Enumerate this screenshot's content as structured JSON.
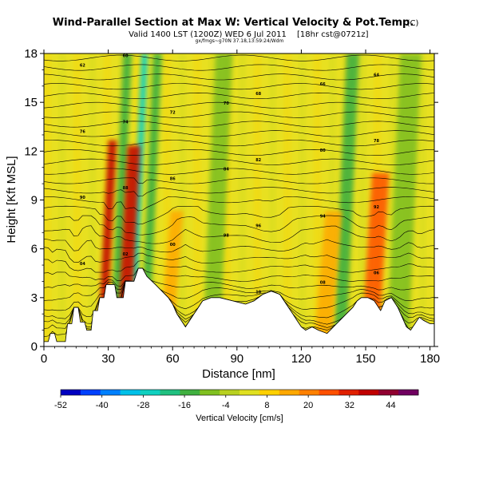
{
  "header": {
    "title": "Wind-Parallel Section at Max W: Vertical Velocity & Pot.Temp.",
    "copyright": "(C)",
    "valid_line": "Valid 1400 LST (1200Z) WED 6 Jul 2011",
    "valid_suffix": "[18hr cst@0721z]",
    "source_line": "gx/fmgs~g70N 37.18,13:59:24/Wdm"
  },
  "chart_data": {
    "type": "heatmap",
    "title": "Wind-Parallel Section at Max W: Vertical Velocity & Pot.Temp.",
    "xlabel": "Distance [nm]",
    "ylabel": "Height [Kft MSL]",
    "xlim": [
      0,
      182
    ],
    "ylim": [
      0,
      18
    ],
    "x_ticks": [
      0,
      30,
      60,
      90,
      120,
      150,
      180
    ],
    "y_ticks": [
      0,
      3,
      6,
      9,
      12,
      15,
      18
    ],
    "x_tick_labels": [
      "0",
      "30",
      "60",
      "90",
      "120",
      "150",
      "180"
    ],
    "y_tick_labels": [
      "0",
      "3",
      "6",
      "9",
      "12",
      "15",
      "18"
    ],
    "colorbar": {
      "label": "Vertical Velocity [cm/s]",
      "range": [
        -52,
        52
      ],
      "ticks": [
        -52,
        -40,
        -28,
        -16,
        -4,
        8,
        20,
        32,
        44
      ],
      "tick_labels": [
        "-52",
        "-40",
        "-28",
        "-16",
        "-4",
        "8",
        "20",
        "32",
        "44"
      ],
      "colors": [
        "#0000c0",
        "#0040ff",
        "#0080ff",
        "#00c0e8",
        "#10d0c0",
        "#20c080",
        "#40b040",
        "#80c020",
        "#b8d020",
        "#e0e020",
        "#ffd000",
        "#ffa800",
        "#ff8000",
        "#ff5000",
        "#e02000",
        "#c00000",
        "#900030",
        "#700060"
      ]
    },
    "terrain_nm_kft": [
      [
        0,
        0.3
      ],
      [
        2,
        0.3
      ],
      [
        3,
        0.8
      ],
      [
        5,
        0.8
      ],
      [
        6,
        0.3
      ],
      [
        10,
        0.3
      ],
      [
        11,
        1.4
      ],
      [
        13,
        1.4
      ],
      [
        14,
        2.4
      ],
      [
        16,
        2.4
      ],
      [
        17,
        1.5
      ],
      [
        19,
        1.5
      ],
      [
        20,
        1.0
      ],
      [
        22,
        1.0
      ],
      [
        23,
        2.2
      ],
      [
        25,
        2.2
      ],
      [
        26,
        3.0
      ],
      [
        28,
        3.0
      ],
      [
        29,
        3.8
      ],
      [
        33,
        3.8
      ],
      [
        34,
        3.0
      ],
      [
        37,
        3.0
      ],
      [
        38,
        4.0
      ],
      [
        42,
        4.0
      ],
      [
        44,
        4.8
      ],
      [
        46,
        4.8
      ],
      [
        48,
        4.3
      ],
      [
        52,
        3.8
      ],
      [
        55,
        3.4
      ],
      [
        58,
        3.0
      ],
      [
        60,
        2.6
      ],
      [
        62,
        2.0
      ],
      [
        64,
        1.6
      ],
      [
        66,
        1.2
      ],
      [
        68,
        1.6
      ],
      [
        70,
        2.0
      ],
      [
        72,
        2.4
      ],
      [
        74,
        2.8
      ],
      [
        78,
        3.0
      ],
      [
        82,
        3.0
      ],
      [
        88,
        2.8
      ],
      [
        94,
        2.6
      ],
      [
        98,
        2.8
      ],
      [
        102,
        3.2
      ],
      [
        106,
        3.4
      ],
      [
        110,
        3.2
      ],
      [
        113,
        2.6
      ],
      [
        116,
        2.0
      ],
      [
        118,
        1.6
      ],
      [
        120,
        1.2
      ],
      [
        122,
        1.0
      ],
      [
        125,
        1.2
      ],
      [
        128,
        1.0
      ],
      [
        132,
        0.8
      ],
      [
        135,
        1.2
      ],
      [
        138,
        1.6
      ],
      [
        141,
        2.0
      ],
      [
        144,
        2.4
      ],
      [
        146,
        2.8
      ],
      [
        148,
        3.0
      ],
      [
        151,
        3.0
      ],
      [
        154,
        2.8
      ],
      [
        157,
        2.2
      ],
      [
        159,
        2.8
      ],
      [
        162,
        3.0
      ],
      [
        165,
        2.4
      ],
      [
        167,
        1.8
      ],
      [
        169,
        1.2
      ],
      [
        171,
        1.0
      ],
      [
        173,
        1.4
      ],
      [
        175,
        1.8
      ],
      [
        177,
        1.6
      ],
      [
        180,
        1.4
      ],
      [
        182,
        1.4
      ]
    ],
    "updrafts": [
      {
        "x": 27,
        "width": 4,
        "w": 40
      },
      {
        "x": 37,
        "width": 6,
        "w": 38
      },
      {
        "x": 57,
        "width": 6,
        "w": 14
      },
      {
        "x": 130,
        "width": 8,
        "w": 14
      },
      {
        "x": 152,
        "width": 8,
        "w": 28
      }
    ],
    "downdrafts": [
      {
        "x": 33,
        "width": 4,
        "w": -16
      },
      {
        "x": 41,
        "width": 3,
        "w": -28
      },
      {
        "x": 47,
        "width": 4,
        "w": -16
      },
      {
        "x": 78,
        "width": 8,
        "w": -8
      },
      {
        "x": 138,
        "width": 6,
        "w": -12
      },
      {
        "x": 165,
        "width": 10,
        "w": -6
      }
    ],
    "contour_labels": [
      "18",
      "16",
      "14",
      "12",
      "10",
      "08",
      "06",
      "04",
      "02",
      "00",
      "98",
      "96",
      "94",
      "92",
      "90",
      "88",
      "86",
      "84",
      "82",
      "80",
      "78",
      "76",
      "74",
      "72",
      "70",
      "68",
      "66",
      "64",
      "62",
      "60",
      "58",
      "56"
    ]
  }
}
